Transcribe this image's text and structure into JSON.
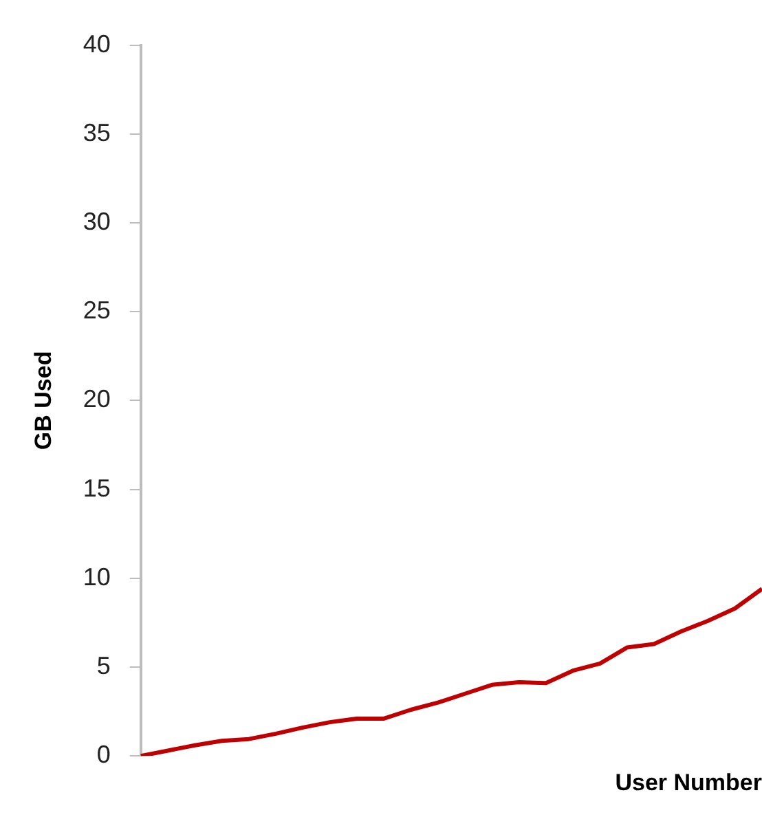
{
  "chart_data": {
    "type": "line",
    "xlabel": "User Number",
    "ylabel": "GB Used",
    "categories": [
      null,
      null,
      null,
      null,
      null,
      null,
      null,
      null,
      null,
      null,
      null,
      null,
      null,
      null,
      null,
      null,
      null,
      null,
      null,
      null,
      null,
      null,
      null,
      null
    ],
    "series": [
      {
        "color": "#c00000",
        "values": [
          0,
          0.3,
          0.6,
          0.85,
          0.95,
          1.25,
          1.6,
          1.9,
          2.1,
          2.1,
          2.6,
          3.0,
          3.5,
          4.0,
          4.15,
          4.1,
          4.8,
          5.2,
          6.1,
          6.3,
          7.0,
          7.6,
          8.3,
          9.4
        ]
      }
    ],
    "ylim": [
      0,
      40
    ],
    "yticks": [
      0,
      5,
      10,
      15,
      20,
      25,
      30,
      35,
      40
    ],
    "grid": false,
    "legend": false,
    "marker": "none",
    "tick_labels": "y"
  }
}
